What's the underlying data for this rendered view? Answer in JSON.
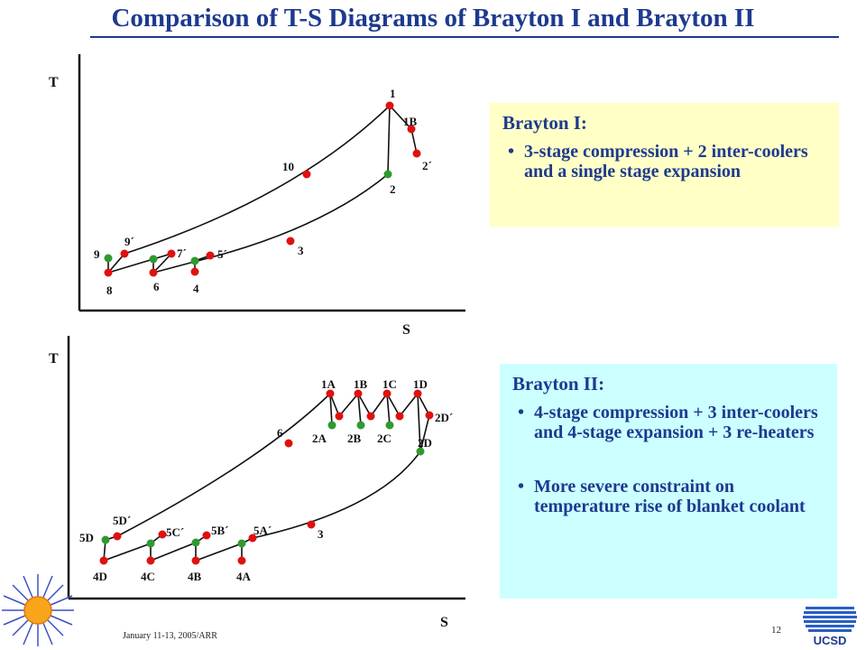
{
  "title": "Comparison of T-S Diagrams of Brayton I and Brayton II",
  "colors": {
    "title": "#1d3a8f",
    "state_point": "#e01010",
    "intermediate_point": "#2f9a2f",
    "box1_bg": "#ffffc6",
    "box2_bg": "#ccffff"
  },
  "diagram1": {
    "axis_t": "T",
    "axis_s": "S",
    "labels": {
      "p1": "1",
      "p1b": "1B",
      "p2p": "2´",
      "p2": "2",
      "p10": "10",
      "p3": "3",
      "p9p": "9´",
      "p9": "9",
      "p7p": "7´",
      "p5p": "5´",
      "p8": "8",
      "p6": "6",
      "p4": "4"
    }
  },
  "diagram2": {
    "axis_t": "T",
    "axis_s": "S",
    "labels": {
      "p1a": "1A",
      "p1b": "1B",
      "p1c": "1C",
      "p1d": "1D",
      "p2dp": "2D´",
      "p2a": "2A",
      "p2b": "2B",
      "p2c": "2C",
      "p2d": "2D",
      "p6": "6",
      "p5dp": "5D´",
      "p5d": "5D",
      "p5cp": "5C´",
      "p5bp": "5B´",
      "p5ap": "5A´",
      "p3": "3",
      "p4d": "4D",
      "p4c": "4C",
      "p4b": "4B",
      "p4a": "4A"
    }
  },
  "box1": {
    "title": "Brayton I:",
    "items": [
      "3-stage compression + 2 inter-coolers and a single stage expansion"
    ]
  },
  "box2": {
    "title": "Brayton II:",
    "items": [
      "4-stage  compression + 3 inter-coolers and 4-stage expansion +  3 re-heaters",
      "More severe constraint on temperature rise of blanket coolant"
    ]
  },
  "footer": {
    "date": "January 11-13, 2005/ARR",
    "page": "12"
  },
  "logo_text": "UCSD"
}
